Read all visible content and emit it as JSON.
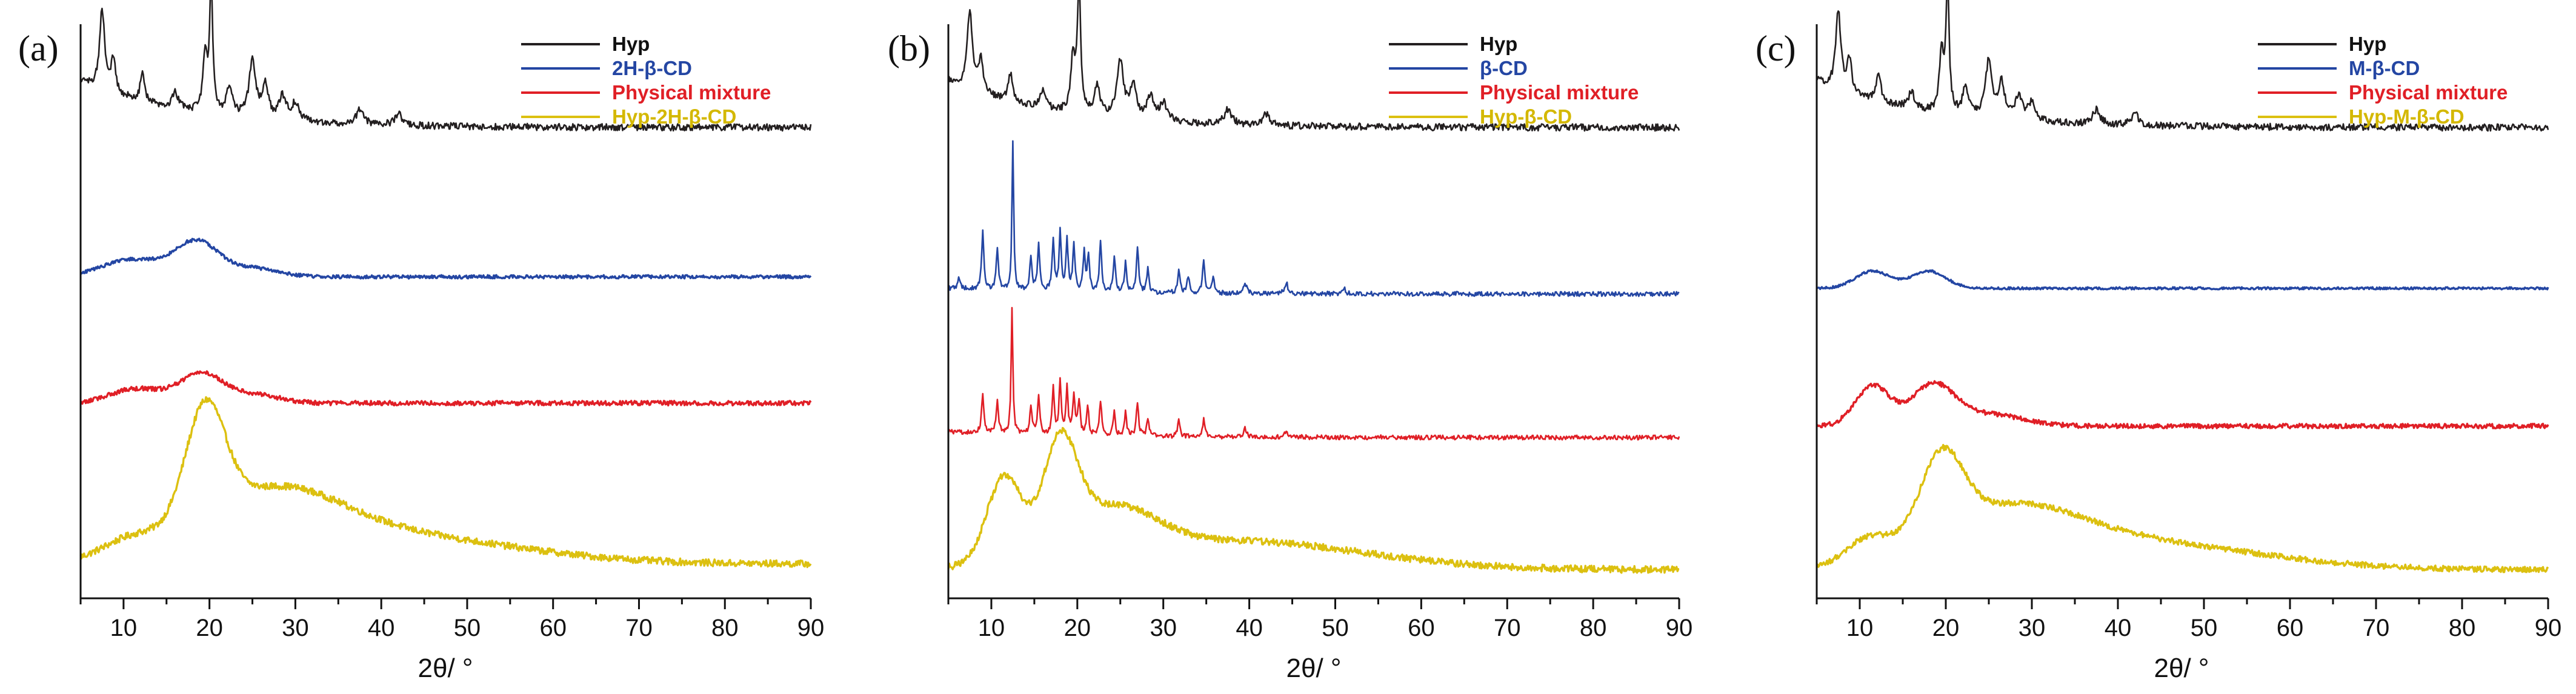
{
  "chart_data": [
    {
      "type": "line",
      "panel_label": "(a)",
      "xlabel": "2θ/ °",
      "ylabel": "",
      "xlim": [
        5,
        90
      ],
      "xticks": [
        10,
        20,
        30,
        40,
        50,
        60,
        70,
        80,
        90
      ],
      "xtick_labels": [
        "10",
        "20",
        "30",
        "40",
        "50",
        "60",
        "70",
        "80",
        "90"
      ],
      "y_axis": "intensity, arbitrary units, curves vertically offset",
      "legend_position": "top-right",
      "series": [
        {
          "name": "Hyp",
          "color": "#231f20",
          "text_color": "#111111",
          "offset": 0.78,
          "baseline": 0.04,
          "decay": 0.08,
          "decay_len": 12,
          "noise": 0.006,
          "style": "sharp",
          "peaks": [
            [
              7.5,
              0.14,
              0.35
            ],
            [
              8.8,
              0.06,
              0.3
            ],
            [
              12.2,
              0.05,
              0.3
            ],
            [
              16,
              0.03,
              0.4
            ],
            [
              19.5,
              0.1,
              0.3
            ],
            [
              20.2,
              0.22,
              0.22
            ],
            [
              22.3,
              0.05,
              0.4
            ],
            [
              25,
              0.1,
              0.45
            ],
            [
              26.5,
              0.06,
              0.4
            ],
            [
              28.5,
              0.04,
              0.5
            ],
            [
              30,
              0.03,
              0.5
            ],
            [
              37.5,
              0.025,
              0.5
            ],
            [
              42,
              0.02,
              0.5
            ]
          ]
        },
        {
          "name": "2H-β-CD",
          "color": "#2446a3",
          "text_color": "#2446a3",
          "offset": 0.56,
          "baseline": 0.0,
          "decay": 0.0,
          "decay_len": 10,
          "noise": 0.003,
          "style": "broad",
          "peaks": [
            [
              11,
              0.03,
              3.5
            ],
            [
              18.5,
              0.06,
              2.5
            ],
            [
              25,
              0.015,
              3
            ]
          ]
        },
        {
          "name": "Physical mixture",
          "color": "#e01f26",
          "text_color": "#e01f26",
          "offset": 0.34,
          "baseline": 0.0,
          "decay": 0.0,
          "decay_len": 10,
          "noise": 0.004,
          "style": "broad",
          "peaks": [
            [
              11.5,
              0.025,
              3
            ],
            [
              19,
              0.05,
              2.5
            ],
            [
              25,
              0.015,
              3
            ]
          ]
        },
        {
          "name": "Hyp-2H-β-CD",
          "color": "#dcc010",
          "text_color": "#d4b800",
          "offset": 0.03,
          "baseline": 0.03,
          "decay": 0.0,
          "decay_len": 10,
          "noise": 0.006,
          "style": "broad",
          "peaks": [
            [
              11,
              0.03,
              3.5
            ],
            [
              19.5,
              0.2,
              2.3
            ],
            [
              27,
              0.1,
              8
            ],
            [
              40,
              0.05,
              15
            ]
          ]
        }
      ]
    },
    {
      "type": "line",
      "panel_label": "(b)",
      "xlabel": "2θ/ °",
      "ylabel": "",
      "xlim": [
        5,
        90
      ],
      "xticks": [
        10,
        20,
        30,
        40,
        50,
        60,
        70,
        80,
        90
      ],
      "xtick_labels": [
        "10",
        "20",
        "30",
        "40",
        "50",
        "60",
        "70",
        "80",
        "90"
      ],
      "y_axis": "intensity, arbitrary units, curves vertically offset",
      "legend_position": "top-right",
      "series": [
        {
          "name": "Hyp",
          "color": "#231f20",
          "text_color": "#111111",
          "offset": 0.78,
          "baseline": 0.04,
          "decay": 0.08,
          "decay_len": 12,
          "noise": 0.006,
          "style": "sharp",
          "peaks": [
            [
              7.5,
              0.14,
              0.35
            ],
            [
              8.8,
              0.06,
              0.3
            ],
            [
              12.2,
              0.05,
              0.3
            ],
            [
              16,
              0.03,
              0.4
            ],
            [
              19.5,
              0.1,
              0.3
            ],
            [
              20.2,
              0.22,
              0.22
            ],
            [
              22.3,
              0.05,
              0.4
            ],
            [
              25,
              0.1,
              0.45
            ],
            [
              26.5,
              0.06,
              0.4
            ],
            [
              28.5,
              0.04,
              0.5
            ],
            [
              30,
              0.03,
              0.5
            ],
            [
              37.5,
              0.025,
              0.5
            ],
            [
              42,
              0.02,
              0.5
            ]
          ]
        },
        {
          "name": "β-CD",
          "color": "#2446a3",
          "text_color": "#2446a3",
          "offset": 0.52,
          "baseline": 0.01,
          "decay": 0.01,
          "decay_len": 15,
          "noise": 0.004,
          "style": "sharp",
          "peaks": [
            [
              6.2,
              0.02,
              0.15
            ],
            [
              9,
              0.1,
              0.15
            ],
            [
              10.7,
              0.07,
              0.15
            ],
            [
              12.5,
              0.26,
              0.12
            ],
            [
              14.6,
              0.06,
              0.15
            ],
            [
              15.5,
              0.08,
              0.15
            ],
            [
              17.2,
              0.09,
              0.15
            ],
            [
              18,
              0.1,
              0.15
            ],
            [
              18.8,
              0.09,
              0.15
            ],
            [
              19.6,
              0.08,
              0.15
            ],
            [
              20.8,
              0.07,
              0.15
            ],
            [
              21.3,
              0.06,
              0.15
            ],
            [
              22.7,
              0.09,
              0.15
            ],
            [
              24.3,
              0.06,
              0.15
            ],
            [
              25.6,
              0.05,
              0.15
            ],
            [
              27,
              0.08,
              0.15
            ],
            [
              28.2,
              0.04,
              0.15
            ],
            [
              31.8,
              0.04,
              0.15
            ],
            [
              32.9,
              0.03,
              0.15
            ],
            [
              34.7,
              0.06,
              0.15
            ],
            [
              35.8,
              0.03,
              0.15
            ],
            [
              39.5,
              0.02,
              0.2
            ],
            [
              44.3,
              0.02,
              0.2
            ],
            [
              51,
              0.01,
              0.2
            ]
          ]
        },
        {
          "name": "Physical mixture",
          "color": "#e01f26",
          "text_color": "#e01f26",
          "offset": 0.28,
          "baseline": 0.0,
          "decay": 0.01,
          "decay_len": 15,
          "noise": 0.004,
          "style": "sharp",
          "peaks": [
            [
              9,
              0.07,
              0.15
            ],
            [
              10.7,
              0.06,
              0.15
            ],
            [
              12.4,
              0.22,
              0.12
            ],
            [
              14.6,
              0.05,
              0.15
            ],
            [
              15.5,
              0.07,
              0.15
            ],
            [
              17.2,
              0.08,
              0.15
            ],
            [
              18,
              0.09,
              0.15
            ],
            [
              18.8,
              0.08,
              0.15
            ],
            [
              19.6,
              0.07,
              0.15
            ],
            [
              20.2,
              0.06,
              0.15
            ],
            [
              21.2,
              0.05,
              0.15
            ],
            [
              22.7,
              0.06,
              0.15
            ],
            [
              24.3,
              0.04,
              0.15
            ],
            [
              25.6,
              0.04,
              0.15
            ],
            [
              27,
              0.06,
              0.15
            ],
            [
              28.2,
              0.03,
              0.15
            ],
            [
              31.8,
              0.03,
              0.15
            ],
            [
              34.7,
              0.03,
              0.15
            ],
            [
              39.5,
              0.015,
              0.2
            ],
            [
              44.3,
              0.01,
              0.2
            ]
          ]
        },
        {
          "name": "Hyp-β-CD",
          "color": "#dcc010",
          "text_color": "#d4b800",
          "offset": 0.03,
          "baseline": 0.02,
          "decay": 0.0,
          "decay_len": 10,
          "noise": 0.006,
          "style": "broad",
          "peaks": [
            [
              11.5,
              0.15,
              2.0
            ],
            [
              18,
              0.18,
              2.0
            ],
            [
              24,
              0.08,
              5
            ],
            [
              38,
              0.05,
              15
            ]
          ]
        }
      ]
    },
    {
      "type": "line",
      "panel_label": "(c)",
      "xlabel": "2θ/ °",
      "ylabel": "",
      "xlim": [
        5,
        90
      ],
      "xticks": [
        10,
        20,
        30,
        40,
        50,
        60,
        70,
        80,
        90
      ],
      "xtick_labels": [
        "10",
        "20",
        "30",
        "40",
        "50",
        "60",
        "70",
        "80",
        "90"
      ],
      "y_axis": "intensity, arbitrary units, curves vertically offset",
      "legend_position": "top-right",
      "series": [
        {
          "name": "Hyp",
          "color": "#231f20",
          "text_color": "#111111",
          "offset": 0.78,
          "baseline": 0.04,
          "decay": 0.08,
          "decay_len": 12,
          "noise": 0.006,
          "style": "sharp",
          "peaks": [
            [
              7.5,
              0.14,
              0.35
            ],
            [
              8.8,
              0.06,
              0.3
            ],
            [
              12.2,
              0.05,
              0.3
            ],
            [
              16,
              0.03,
              0.4
            ],
            [
              19.5,
              0.1,
              0.3
            ],
            [
              20.2,
              0.22,
              0.22
            ],
            [
              22.3,
              0.05,
              0.4
            ],
            [
              25,
              0.1,
              0.45
            ],
            [
              26.5,
              0.06,
              0.4
            ],
            [
              28.5,
              0.04,
              0.5
            ],
            [
              30,
              0.03,
              0.5
            ],
            [
              37.5,
              0.025,
              0.5
            ],
            [
              42,
              0.02,
              0.5
            ]
          ]
        },
        {
          "name": "M-β-CD",
          "color": "#2446a3",
          "text_color": "#2446a3",
          "offset": 0.54,
          "baseline": 0.0,
          "decay": 0.0,
          "decay_len": 10,
          "noise": 0.002,
          "style": "broad",
          "peaks": [
            [
              11.5,
              0.03,
              2
            ],
            [
              18,
              0.03,
              2
            ]
          ]
        },
        {
          "name": "Physical mixture",
          "color": "#e01f26",
          "text_color": "#e01f26",
          "offset": 0.3,
          "baseline": 0.0,
          "decay": 0.0,
          "decay_len": 10,
          "noise": 0.004,
          "style": "broad",
          "peaks": [
            [
              11.5,
              0.07,
              2
            ],
            [
              18.5,
              0.07,
              2.5
            ],
            [
              25,
              0.02,
              4
            ]
          ]
        },
        {
          "name": "Hyp-M-β-CD",
          "color": "#dcc010",
          "text_color": "#d4b800",
          "offset": 0.03,
          "baseline": 0.02,
          "decay": 0.0,
          "decay_len": 10,
          "noise": 0.005,
          "style": "broad",
          "peaks": [
            [
              11,
              0.04,
              2.5
            ],
            [
              19.5,
              0.14,
              2.5
            ],
            [
              27,
              0.08,
              8
            ],
            [
              40,
              0.05,
              15
            ]
          ]
        }
      ]
    }
  ]
}
